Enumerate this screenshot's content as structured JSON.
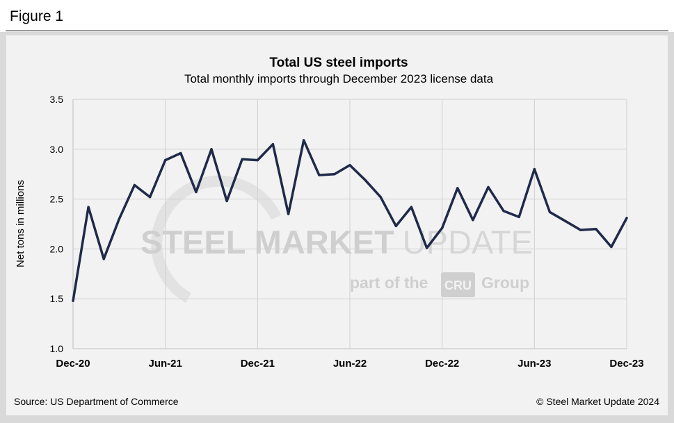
{
  "figure_label": "Figure 1",
  "chart_data": {
    "type": "line",
    "title": "Total US steel imports",
    "subtitle": "Total monthly  imports through  December 2023 license data",
    "ylabel": "Net tons in millions",
    "xlabel": "",
    "ylim": [
      1.0,
      3.5
    ],
    "y_ticks": [
      "1.0",
      "1.5",
      "2.0",
      "2.5",
      "3.0",
      "3.5"
    ],
    "x_tick_labels": [
      "Dec-20",
      "Jun-21",
      "Dec-21",
      "Jun-22",
      "Dec-22",
      "Jun-23",
      "Dec-23"
    ],
    "x_tick_indices": [
      0,
      6,
      12,
      18,
      24,
      30,
      36
    ],
    "grid": true,
    "series": [
      {
        "name": "Total US steel imports",
        "color": "#1f2a4a",
        "x": [
          "Dec-20",
          "Jan-21",
          "Feb-21",
          "Mar-21",
          "Apr-21",
          "May-21",
          "Jun-21",
          "Jul-21",
          "Aug-21",
          "Sep-21",
          "Oct-21",
          "Nov-21",
          "Dec-21",
          "Jan-22",
          "Feb-22",
          "Mar-22",
          "Apr-22",
          "May-22",
          "Jun-22",
          "Jul-22",
          "Aug-22",
          "Sep-22",
          "Oct-22",
          "Nov-22",
          "Dec-22",
          "Jan-23",
          "Feb-23",
          "Mar-23",
          "Apr-23",
          "May-23",
          "Jun-23",
          "Jul-23",
          "Aug-23",
          "Sep-23",
          "Oct-23",
          "Nov-23",
          "Dec-23"
        ],
        "values": [
          1.48,
          2.42,
          1.9,
          2.3,
          2.64,
          2.52,
          2.89,
          2.96,
          2.57,
          3.0,
          2.48,
          2.9,
          2.89,
          3.05,
          2.35,
          3.09,
          2.74,
          2.75,
          2.84,
          2.69,
          2.52,
          2.23,
          2.42,
          2.01,
          2.21,
          2.61,
          2.29,
          2.62,
          2.38,
          2.32,
          2.8,
          2.37,
          2.28,
          2.19,
          2.2,
          2.02,
          2.31
        ]
      }
    ]
  },
  "watermark": {
    "line1_bold": "STEEL MARKET",
    "line1_light": "UPDATE",
    "line2_before": "part of the",
    "line2_badge": "CRU",
    "line2_after": "Group"
  },
  "footer": {
    "source": "Source: US Department of Commerce",
    "copyright": "© Steel Market Update 2024"
  }
}
